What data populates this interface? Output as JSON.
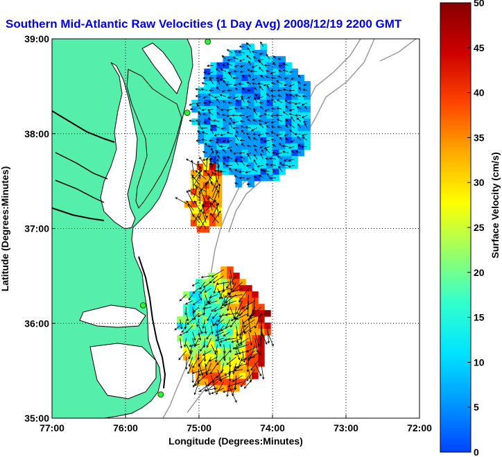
{
  "title": "Southern Mid-Atlantic Raw Velocities (1 Day Avg) 2008/12/19 2200 GMT",
  "x_axis": {
    "label": "Longitude (Degrees:Minutes)",
    "ticks": [
      "77:00",
      "76:00",
      "75:00",
      "74:00",
      "73:00",
      "72:00"
    ]
  },
  "y_axis": {
    "label": "Latitude (Degrees:Minutes)",
    "ticks": [
      "39:00",
      "38:00",
      "37:00",
      "36:00",
      "35:00"
    ]
  },
  "colorbar": {
    "label": "Surface Velocity (cm/s)",
    "ticks": [
      "0",
      "5",
      "10",
      "15",
      "20",
      "25",
      "30",
      "35",
      "40",
      "45",
      "50"
    ],
    "range": [
      0,
      50
    ],
    "colors": [
      "#0044ff",
      "#0099ff",
      "#00e5ff",
      "#33ffcc",
      "#99ff66",
      "#ffff00",
      "#ffaa00",
      "#ff4400",
      "#cc0000",
      "#880000"
    ]
  },
  "map": {
    "extent": {
      "lon": [
        -77,
        -72
      ],
      "lat": [
        35,
        39
      ]
    },
    "land_color": "#55eeaa",
    "coast_color": "#000000",
    "grid": "dotted",
    "stations": [
      {
        "lon": -74.88,
        "lat": 38.97
      },
      {
        "lon": -75.16,
        "lat": 38.22
      },
      {
        "lon": -75.76,
        "lat": 36.19
      },
      {
        "lon": -75.52,
        "lat": 35.25
      }
    ]
  },
  "chart_data": {
    "type": "heatmap",
    "description_units": "surface current speed in cm/s, 1-day average",
    "regions": [
      {
        "name": "",
        "lon": [
          -75.1,
          -73.5
        ],
        "lat": [
          37.5,
          38.95
        ],
        "speed_range": [
          2,
          12
        ]
      },
      {
        "name": "",
        "lon": [
          -75.2,
          -74.7
        ],
        "lat": [
          37.0,
          37.75
        ],
        "speed_range": [
          25,
          42
        ]
      },
      {
        "name": "",
        "lon": [
          -75.3,
          -74.1
        ],
        "lat": [
          35.3,
          36.6
        ],
        "speed_range": [
          8,
          50
        ]
      }
    ]
  }
}
